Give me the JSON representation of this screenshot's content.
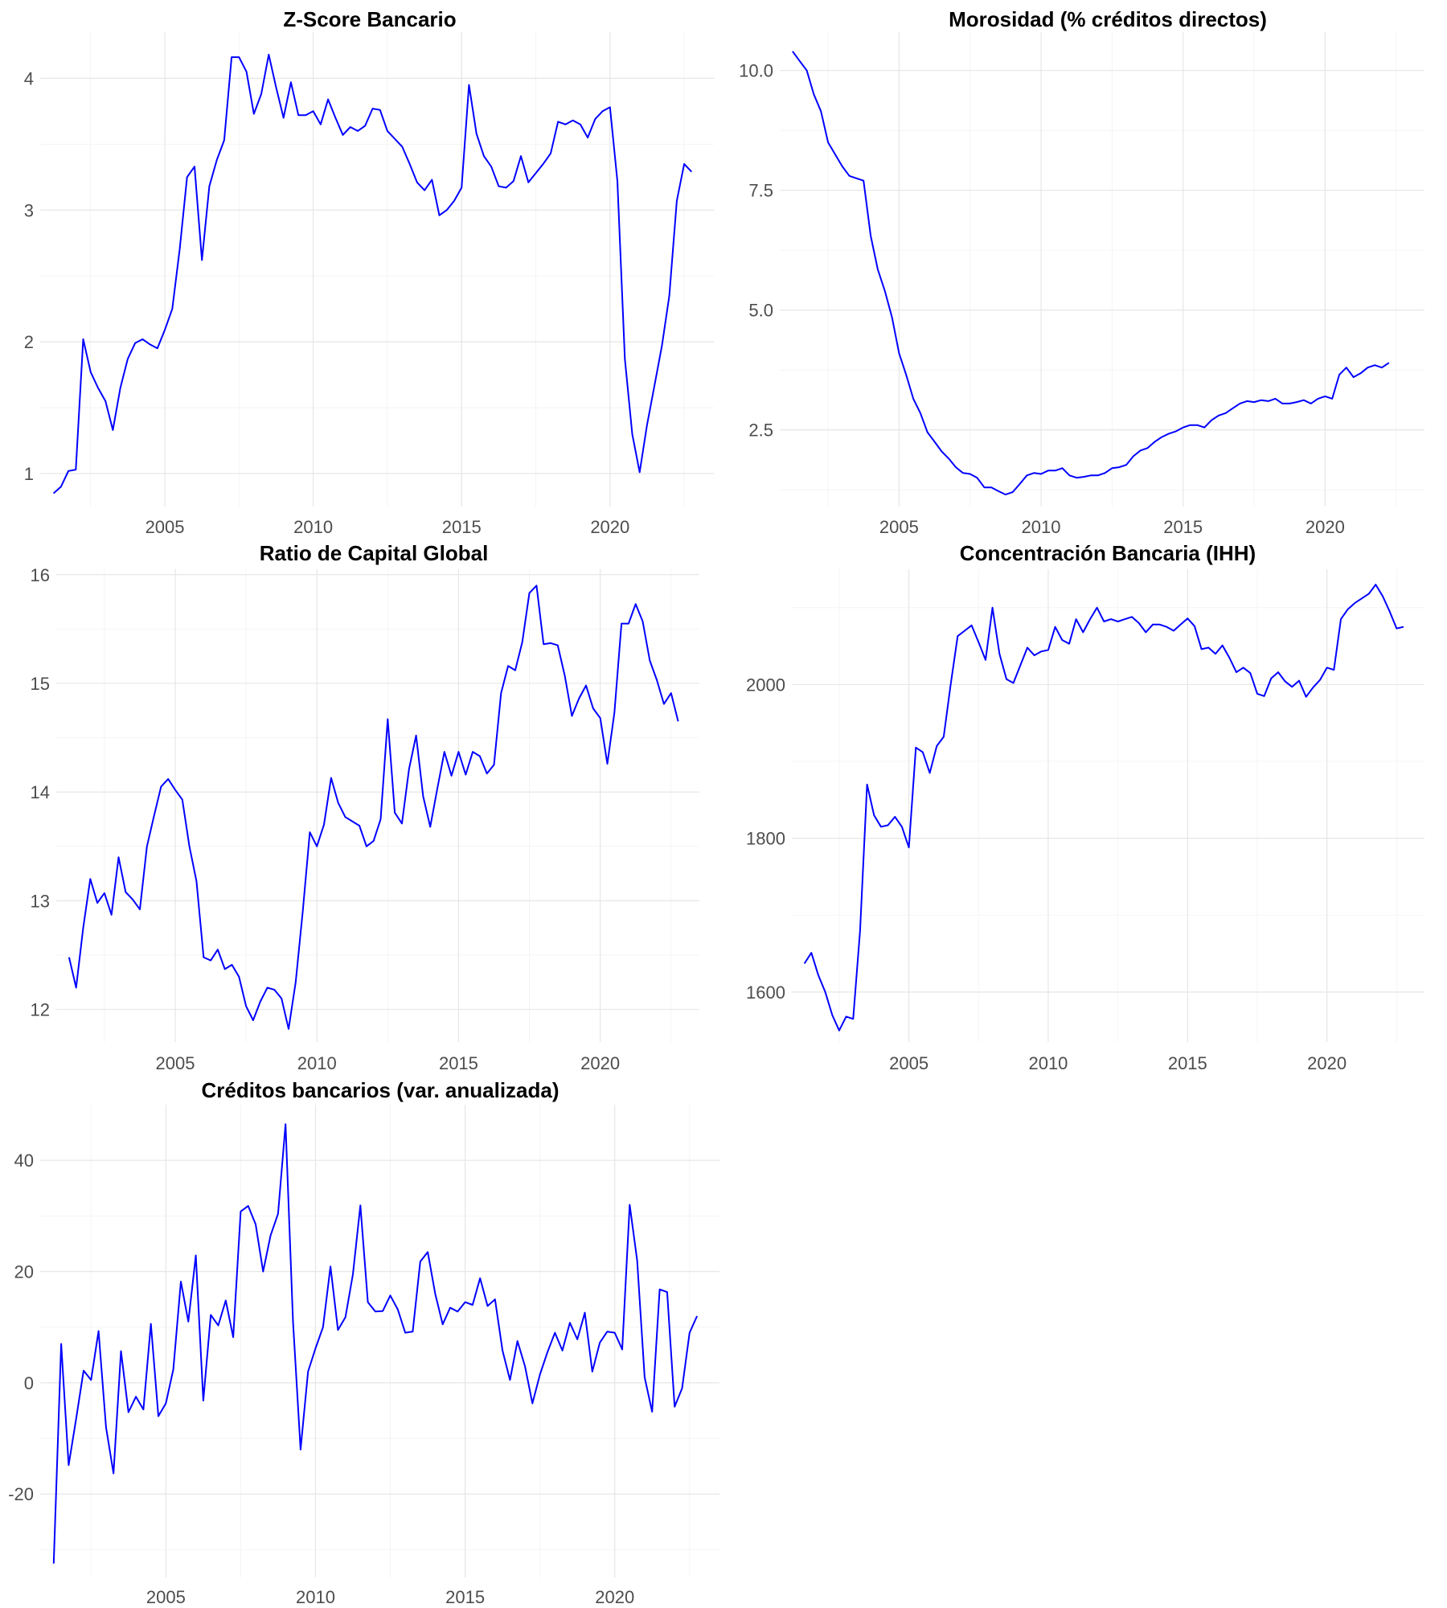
{
  "colors": {
    "series": "#0000ff",
    "grid_major": "#e6e6e6",
    "grid_minor": "#f2f2f2"
  },
  "chart_data": [
    {
      "type": "line",
      "title": "Z-Score Bancario",
      "xlabel": "",
      "ylabel": "",
      "xlim": [
        2000.8,
        2023.5
      ],
      "ylim": [
        0.75,
        4.35
      ],
      "xticks": [
        2005,
        2010,
        2015,
        2020
      ],
      "yticks": [
        1,
        2,
        3,
        4
      ],
      "x_start": 2001.25,
      "x_step": 0.25,
      "values": [
        0.85,
        0.9,
        1.02,
        1.03,
        2.02,
        1.77,
        1.65,
        1.55,
        1.33,
        1.65,
        1.87,
        1.99,
        2.02,
        1.98,
        1.95,
        2.09,
        2.25,
        2.7,
        3.25,
        3.33,
        2.62,
        3.18,
        3.38,
        3.53,
        4.16,
        4.16,
        4.05,
        3.73,
        3.88,
        4.18,
        3.93,
        3.7,
        3.97,
        3.72,
        3.72,
        3.75,
        3.65,
        3.84,
        3.7,
        3.57,
        3.63,
        3.6,
        3.64,
        3.77,
        3.76,
        3.6,
        3.54,
        3.48,
        3.35,
        3.21,
        3.15,
        3.23,
        2.96,
        3.0,
        3.07,
        3.17,
        3.95,
        3.58,
        3.41,
        3.33,
        3.18,
        3.17,
        3.22,
        3.41,
        3.21,
        3.28,
        3.35,
        3.43,
        3.67,
        3.65,
        3.68,
        3.65,
        3.55,
        3.69,
        3.75,
        3.78,
        3.22,
        1.87,
        1.3,
        1.01,
        1.37,
        1.67,
        1.97,
        2.35,
        3.07,
        3.35,
        3.29
      ]
    },
    {
      "type": "line",
      "title": "Morosidad (% créditos directos)",
      "xlabel": "",
      "ylabel": "",
      "xlim": [
        2000.8,
        2023.5
      ],
      "ylim": [
        0.9,
        10.8
      ],
      "xticks": [
        2005,
        2010,
        2015,
        2020
      ],
      "yticks": [
        2.5,
        5.0,
        7.5,
        10.0
      ],
      "ytick_labels": [
        "2.5",
        "5.0",
        "7.5",
        "10.0"
      ],
      "x_start": 2001.25,
      "x_step": 0.25,
      "values": [
        10.4,
        10.2,
        10.0,
        9.5,
        9.15,
        8.5,
        8.25,
        8.0,
        7.8,
        7.75,
        7.7,
        6.55,
        5.85,
        5.4,
        4.85,
        4.1,
        3.65,
        3.15,
        2.85,
        2.45,
        2.25,
        2.05,
        1.9,
        1.72,
        1.6,
        1.58,
        1.5,
        1.3,
        1.3,
        1.22,
        1.15,
        1.2,
        1.37,
        1.55,
        1.6,
        1.58,
        1.65,
        1.65,
        1.7,
        1.55,
        1.5,
        1.52,
        1.55,
        1.55,
        1.6,
        1.7,
        1.72,
        1.77,
        1.95,
        2.07,
        2.12,
        2.25,
        2.35,
        2.42,
        2.47,
        2.55,
        2.6,
        2.6,
        2.55,
        2.7,
        2.8,
        2.85,
        2.95,
        3.05,
        3.1,
        3.08,
        3.12,
        3.1,
        3.15,
        3.05,
        3.05,
        3.08,
        3.12,
        3.05,
        3.15,
        3.2,
        3.15,
        3.65,
        3.8,
        3.6,
        3.68,
        3.8,
        3.85,
        3.8,
        3.9
      ]
    },
    {
      "type": "line",
      "title": "Ratio de Capital Global",
      "xlabel": "",
      "ylabel": "",
      "xlim": [
        2000.8,
        2023.5
      ],
      "ylim": [
        11.7,
        16.05
      ],
      "xticks": [
        2005,
        2010,
        2015,
        2020
      ],
      "yticks": [
        12,
        13,
        14,
        15,
        16
      ],
      "x_start": 2001.25,
      "x_step": 0.25,
      "values": [
        12.48,
        12.2,
        12.75,
        13.2,
        12.98,
        13.07,
        12.87,
        13.4,
        13.08,
        13.01,
        12.92,
        13.5,
        13.78,
        14.05,
        14.12,
        14.02,
        13.93,
        13.5,
        13.18,
        12.48,
        12.45,
        12.55,
        12.37,
        12.41,
        12.3,
        12.03,
        11.9,
        12.07,
        12.2,
        12.18,
        12.1,
        11.82,
        12.25,
        12.9,
        13.63,
        13.5,
        13.7,
        14.13,
        13.9,
        13.77,
        13.73,
        13.69,
        13.5,
        13.55,
        13.75,
        14.67,
        13.81,
        13.71,
        14.21,
        14.52,
        13.96,
        13.68,
        14.03,
        14.37,
        14.15,
        14.37,
        14.16,
        14.37,
        14.33,
        14.17,
        14.25,
        14.91,
        15.16,
        15.12,
        15.38,
        15.83,
        15.9,
        15.36,
        15.37,
        15.35,
        15.07,
        14.7,
        14.86,
        14.98,
        14.77,
        14.68,
        14.26,
        14.73,
        15.55,
        15.55,
        15.73,
        15.57,
        15.21,
        15.03,
        14.81,
        14.91,
        14.65
      ]
    },
    {
      "type": "line",
      "title": "Concentración Bancaria (IHH)",
      "xlabel": "",
      "ylabel": "",
      "xlim": [
        2000.8,
        2023.5
      ],
      "ylim": [
        1535,
        2150
      ],
      "xticks": [
        2005,
        2010,
        2015,
        2020
      ],
      "yticks": [
        1600,
        1800,
        2000
      ],
      "x_start": 2001.25,
      "x_step": 0.25,
      "values": [
        1637,
        1651,
        1622,
        1600,
        1570,
        1550,
        1568,
        1565,
        1680,
        1870,
        1830,
        1815,
        1817,
        1828,
        1815,
        1788,
        1918,
        1912,
        1885,
        1920,
        1932,
        2000,
        2063,
        2070,
        2077,
        2055,
        2032,
        2100,
        2040,
        2007,
        2002,
        2025,
        2048,
        2038,
        2043,
        2045,
        2075,
        2058,
        2053,
        2085,
        2068,
        2085,
        2100,
        2082,
        2085,
        2082,
        2085,
        2088,
        2080,
        2068,
        2078,
        2078,
        2075,
        2070,
        2078,
        2086,
        2076,
        2046,
        2048,
        2040,
        2051,
        2035,
        2016,
        2022,
        2015,
        1988,
        1985,
        2008,
        2016,
        2004,
        1997,
        2005,
        1984,
        1996,
        2006,
        2022,
        2019,
        2085,
        2098,
        2106,
        2112,
        2118,
        2130,
        2115,
        2095,
        2073,
        2075
      ]
    },
    {
      "type": "line",
      "title": "Créditos bancarios (var. anualizada)",
      "xlabel": "",
      "ylabel": "",
      "xlim": [
        2000.8,
        2023.5
      ],
      "ylim": [
        -35,
        50
      ],
      "xticks": [
        2005,
        2010,
        2015,
        2020
      ],
      "yticks": [
        -20,
        0,
        20,
        40
      ],
      "x_start": 2001.25,
      "x_step": 0.25,
      "values": [
        -32.5,
        7.0,
        -14.8,
        -6.5,
        2.2,
        0.5,
        9.3,
        -8.0,
        -16.3,
        5.7,
        -5.3,
        -2.5,
        -4.8,
        10.6,
        -6.0,
        -3.7,
        2.4,
        18.2,
        11.0,
        22.9,
        -3.2,
        12.2,
        10.3,
        14.8,
        8.2,
        30.8,
        31.8,
        28.5,
        20.0,
        26.5,
        30.4,
        46.5,
        11.0,
        -12.0,
        2.0,
        6.2,
        10.0,
        20.9,
        9.5,
        11.8,
        19.5,
        31.9,
        14.5,
        12.8,
        12.9,
        15.7,
        13.2,
        9.0,
        9.2,
        21.8,
        23.5,
        16.0,
        10.5,
        13.5,
        12.8,
        14.5,
        14.0,
        18.8,
        13.8,
        15.0,
        5.8,
        0.5,
        7.5,
        3.0,
        -3.7,
        1.5,
        5.5,
        9.0,
        5.8,
        10.8,
        7.8,
        12.6,
        2.0,
        7.2,
        9.2,
        9.0,
        6.0,
        32.0,
        22.0,
        1.0,
        -5.2,
        16.8,
        16.3,
        -4.3,
        -1.0,
        9.0,
        12.0
      ]
    }
  ]
}
